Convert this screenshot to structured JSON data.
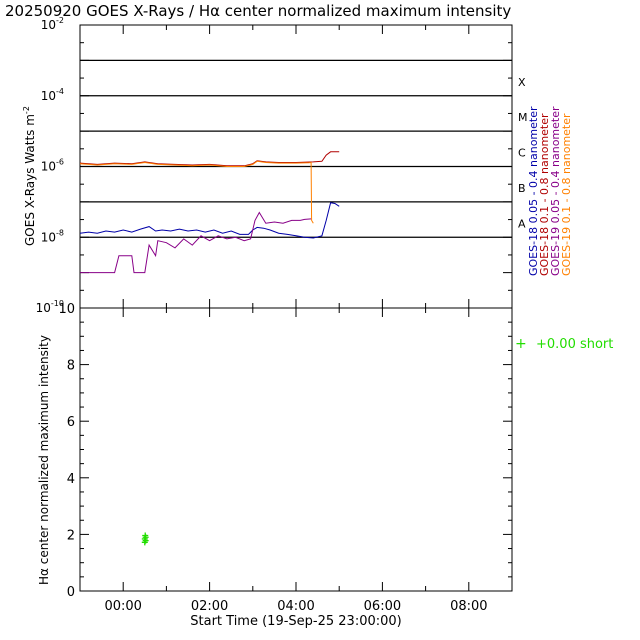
{
  "title": "20250920 GOES X-Rays / Hα center normalized maximum intensity",
  "chart_data": [
    {
      "type": "line",
      "panel": "top",
      "ylabel": "GOES X-Rays Watts m",
      "ylabel_sup": "-2",
      "yscale": "log",
      "ylim": [
        1e-10,
        0.01
      ],
      "xlim": [
        -1,
        9
      ],
      "x_unit": "hours from 00:00 (20-Sep-25)",
      "y_ticks": [
        {
          "value": 1e-10,
          "base": "10",
          "exp": "-10"
        },
        {
          "value": 1e-08,
          "base": "10",
          "exp": "-8"
        },
        {
          "value": 1e-06,
          "base": "10",
          "exp": "-6"
        },
        {
          "value": 0.0001,
          "base": "10",
          "exp": "-4"
        },
        {
          "value": 0.01,
          "base": "10",
          "exp": "-2"
        }
      ],
      "flare_lines": [
        1e-08,
        1e-07,
        1e-06,
        1e-05,
        0.0001,
        0.001
      ],
      "flare_classes": [
        {
          "label": "A",
          "value": 1e-08
        },
        {
          "label": "B",
          "value": 1e-07
        },
        {
          "label": "C",
          "value": 1e-06
        },
        {
          "label": "M",
          "value": 1e-05
        },
        {
          "label": "X",
          "value": 0.0001
        }
      ],
      "legend": [
        {
          "label": "GOES-18  0.05  -  0.4  nanometer",
          "color": "#0000a8"
        },
        {
          "label": "GOES-18  0.1  -  0.8  nanometer",
          "color": "#b00000"
        },
        {
          "label": "GOES-19  0.05  -  0.4  nanometer",
          "color": "#880088"
        },
        {
          "label": "GOES-19  0.1  -  0.8  nanometer",
          "color": "#ff8000"
        }
      ],
      "series": [
        {
          "name": "GOES-18 0.05-0.4 nm",
          "color": "#0000a8",
          "points": [
            [
              -1.0,
              1.3e-08
            ],
            [
              -0.8,
              1.4e-08
            ],
            [
              -0.6,
              1.3e-08
            ],
            [
              -0.4,
              1.5e-08
            ],
            [
              -0.2,
              1.4e-08
            ],
            [
              0.0,
              1.6e-08
            ],
            [
              0.2,
              1.4e-08
            ],
            [
              0.4,
              1.7e-08
            ],
            [
              0.6,
              2e-08
            ],
            [
              0.75,
              1.5e-08
            ],
            [
              0.9,
              1.6e-08
            ],
            [
              1.1,
              1.5e-08
            ],
            [
              1.3,
              1.7e-08
            ],
            [
              1.5,
              1.5e-08
            ],
            [
              1.7,
              1.6e-08
            ],
            [
              1.9,
              1.4e-08
            ],
            [
              2.1,
              1.6e-08
            ],
            [
              2.3,
              1.3e-08
            ],
            [
              2.5,
              1.5e-08
            ],
            [
              2.7,
              1.2e-08
            ],
            [
              2.9,
              1.2e-08
            ],
            [
              3.0,
              1.6e-08
            ],
            [
              3.1,
              1.9e-08
            ],
            [
              3.25,
              1.8e-08
            ],
            [
              3.4,
              1.6e-08
            ],
            [
              3.6,
              1.3e-08
            ],
            [
              3.8,
              1.2e-08
            ],
            [
              4.0,
              1.1e-08
            ],
            [
              4.2,
              1e-08
            ],
            [
              4.4,
              9.5e-09
            ],
            [
              4.6,
              1.1e-08
            ],
            [
              4.7,
              3e-08
            ],
            [
              4.8,
              9.5e-08
            ],
            [
              4.9,
              9e-08
            ],
            [
              5.0,
              7.5e-08
            ]
          ]
        },
        {
          "name": "GOES-18 0.1-0.8 nm",
          "color": "#b00000",
          "points": [
            [
              -1.0,
              1.25e-06
            ],
            [
              -0.6,
              1.15e-06
            ],
            [
              -0.2,
              1.25e-06
            ],
            [
              0.2,
              1.2e-06
            ],
            [
              0.5,
              1.35e-06
            ],
            [
              0.8,
              1.2e-06
            ],
            [
              1.2,
              1.15e-06
            ],
            [
              1.6,
              1.1e-06
            ],
            [
              2.0,
              1.15e-06
            ],
            [
              2.4,
              1.05e-06
            ],
            [
              2.8,
              1.05e-06
            ],
            [
              3.0,
              1.2e-06
            ],
            [
              3.1,
              1.45e-06
            ],
            [
              3.3,
              1.35e-06
            ],
            [
              3.6,
              1.3e-06
            ],
            [
              4.0,
              1.3e-06
            ],
            [
              4.4,
              1.35e-06
            ],
            [
              4.6,
              1.4e-06
            ],
            [
              4.7,
              2.1e-06
            ],
            [
              4.8,
              2.6e-06
            ],
            [
              5.0,
              2.6e-06
            ]
          ]
        },
        {
          "name": "GOES-19 0.05-0.4 nm",
          "color": "#880088",
          "points": [
            [
              -1.0,
              1e-09
            ],
            [
              -0.2,
              1e-09
            ],
            [
              -0.1,
              3e-09
            ],
            [
              0.2,
              3e-09
            ],
            [
              0.25,
              1e-09
            ],
            [
              0.5,
              1e-09
            ],
            [
              0.6,
              6e-09
            ],
            [
              0.75,
              3e-09
            ],
            [
              0.8,
              8e-09
            ],
            [
              1.0,
              7e-09
            ],
            [
              1.2,
              5e-09
            ],
            [
              1.4,
              9e-09
            ],
            [
              1.6,
              6e-09
            ],
            [
              1.8,
              1.1e-08
            ],
            [
              2.0,
              8e-09
            ],
            [
              2.2,
              1.1e-08
            ],
            [
              2.4,
              9e-09
            ],
            [
              2.6,
              1e-08
            ],
            [
              2.8,
              8e-09
            ],
            [
              2.95,
              9e-09
            ],
            [
              3.05,
              3e-08
            ],
            [
              3.15,
              5e-08
            ],
            [
              3.3,
              2.5e-08
            ],
            [
              3.5,
              2.7e-08
            ],
            [
              3.7,
              2.5e-08
            ],
            [
              3.9,
              3e-08
            ],
            [
              4.1,
              3e-08
            ],
            [
              4.2,
              3.2e-08
            ],
            [
              4.35,
              3.3e-08
            ]
          ]
        },
        {
          "name": "GOES-19 0.1-0.8 nm",
          "color": "#ff8000",
          "points": [
            [
              -1.0,
              1.2e-06
            ],
            [
              -0.6,
              1.1e-06
            ],
            [
              -0.2,
              1.2e-06
            ],
            [
              0.2,
              1.15e-06
            ],
            [
              0.5,
              1.3e-06
            ],
            [
              0.8,
              1.15e-06
            ],
            [
              1.2,
              1.1e-06
            ],
            [
              1.6,
              1.05e-06
            ],
            [
              2.0,
              1.1e-06
            ],
            [
              2.4,
              1e-06
            ],
            [
              2.8,
              1e-06
            ],
            [
              3.0,
              1.15e-06
            ],
            [
              3.1,
              1.4e-06
            ],
            [
              3.3,
              1.3e-06
            ],
            [
              3.6,
              1.25e-06
            ],
            [
              4.0,
              1.25e-06
            ],
            [
              4.3,
              1.28e-06
            ],
            [
              4.35,
              1.3e-06
            ],
            [
              4.36,
              3e-08
            ],
            [
              4.4,
              2.5e-08
            ]
          ]
        }
      ]
    },
    {
      "type": "scatter",
      "panel": "bottom",
      "xlabel": "Start Time (19-Sep-25 23:00:00)",
      "ylabel": "Hα center normalized maximum intensity",
      "xlim": [
        -1,
        9
      ],
      "ylim": [
        0,
        10
      ],
      "x_ticks": [
        {
          "value": 0,
          "label": "00:00"
        },
        {
          "value": 2,
          "label": "02:00"
        },
        {
          "value": 4,
          "label": "04:00"
        },
        {
          "value": 6,
          "label": "06:00"
        },
        {
          "value": 8,
          "label": "08:00"
        }
      ],
      "y_ticks": [
        {
          "value": 0,
          "label": "0"
        },
        {
          "value": 2,
          "label": "2"
        },
        {
          "value": 4,
          "label": "4"
        },
        {
          "value": 6,
          "label": "6"
        },
        {
          "value": 8,
          "label": "8"
        },
        {
          "value": 10,
          "label": "10"
        }
      ],
      "legend": [
        {
          "symbol": "+",
          "label": "+0.00 short",
          "color": "#22dd00"
        }
      ],
      "series": [
        {
          "name": "+0.00 short",
          "color": "#22dd00",
          "points": [
            [
              0.5,
              1.72
            ],
            [
              0.52,
              1.78
            ],
            [
              0.5,
              1.84
            ],
            [
              0.52,
              1.9
            ],
            [
              0.51,
              1.96
            ]
          ]
        }
      ]
    }
  ]
}
